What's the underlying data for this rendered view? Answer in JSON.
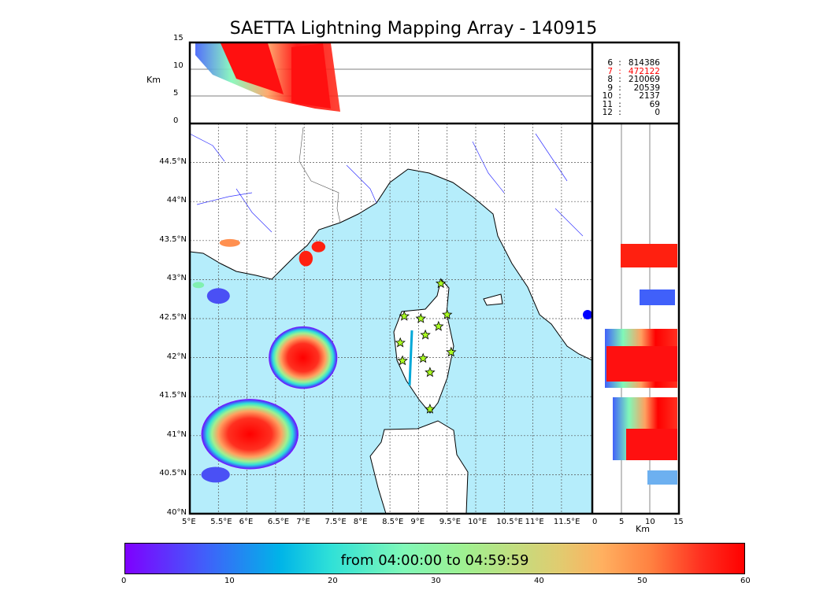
{
  "title": "SAETTA Lightning Mapping Array - 140915",
  "colorbar": {
    "label": "from 04:00:00 to 04:59:59",
    "ticks": [
      "0",
      "10",
      "20",
      "30",
      "40",
      "50",
      "60"
    ],
    "range": [
      0,
      60
    ]
  },
  "top_panel": {
    "ylabel": "Km",
    "yticks": [
      "0",
      "5",
      "10",
      "15"
    ]
  },
  "side_panel": {
    "xlabel": "Km",
    "xticks": [
      "0",
      "5",
      "10",
      "15"
    ]
  },
  "stats": [
    {
      "n": "6",
      "v": "814386",
      "highlight": false
    },
    {
      "n": "7",
      "v": "472122",
      "highlight": true
    },
    {
      "n": "8",
      "v": "210069",
      "highlight": false
    },
    {
      "n": "9",
      "v": "20539",
      "highlight": false
    },
    {
      "n": "10",
      "v": "2137",
      "highlight": false
    },
    {
      "n": "11",
      "v": "69",
      "highlight": false
    },
    {
      "n": "12",
      "v": "0",
      "highlight": false
    }
  ],
  "separator": ":",
  "map": {
    "lon_ticks": [
      "5°E",
      "5.5°E",
      "6°E",
      "6.5°E",
      "7°E",
      "7.5°E",
      "8°E",
      "8.5°E",
      "9°E",
      "9.5°E",
      "10°E",
      "10.5°E",
      "11°E",
      "11.5°E"
    ],
    "lat_ticks": [
      "40°N",
      "40.5°N",
      "41°N",
      "41.5°N",
      "42°N",
      "42.5°N",
      "43°N",
      "43.5°N",
      "44°N",
      "44.5°N"
    ],
    "sea_color": "#b5edfb",
    "stations": [
      [
        9.39,
        42.95
      ],
      [
        8.75,
        42.53
      ],
      [
        9.04,
        42.5
      ],
      [
        9.5,
        42.55
      ],
      [
        9.35,
        42.4
      ],
      [
        9.12,
        42.29
      ],
      [
        8.68,
        42.19
      ],
      [
        9.57,
        42.07
      ],
      [
        9.08,
        41.99
      ],
      [
        8.72,
        41.96
      ],
      [
        9.2,
        41.81
      ],
      [
        9.2,
        41.34
      ]
    ]
  },
  "chart_data": {
    "type": "scatter",
    "title": "SAETTA Lightning Mapping Array - 140915",
    "xlim": [
      5,
      12
    ],
    "ylim": [
      40,
      45
    ],
    "clusters": [
      {
        "lon": 6.98,
        "lat": 42.0,
        "rlon": 0.6,
        "rlat": 0.4,
        "t": [
          0,
          58
        ],
        "alt": [
          3,
          13
        ]
      },
      {
        "lon": 6.05,
        "lat": 41.02,
        "rlon": 0.85,
        "rlat": 0.45,
        "t": [
          5,
          58
        ],
        "alt": [
          3,
          14
        ]
      },
      {
        "lon": 5.45,
        "lat": 40.5,
        "rlon": 0.25,
        "rlat": 0.1,
        "t": [
          8,
          20
        ],
        "alt": [
          8,
          13
        ]
      },
      {
        "lon": 5.5,
        "lat": 42.79,
        "rlon": 0.2,
        "rlat": 0.1,
        "t": [
          8,
          12
        ],
        "alt": [
          8,
          12
        ]
      },
      {
        "lon": 5.15,
        "lat": 42.93,
        "rlon": 0.1,
        "rlat": 0.04,
        "t": [
          25,
          30
        ],
        "alt": [
          10,
          12
        ]
      },
      {
        "lon": 5.7,
        "lat": 43.47,
        "rlon": 0.18,
        "rlat": 0.05,
        "t": [
          48,
          52
        ],
        "alt": [
          10,
          12
        ]
      },
      {
        "lon": 7.03,
        "lat": 43.27,
        "rlon": 0.12,
        "rlat": 0.1,
        "t": [
          55,
          60
        ],
        "alt": [
          7,
          13
        ]
      },
      {
        "lon": 7.25,
        "lat": 43.42,
        "rlon": 0.12,
        "rlat": 0.07,
        "t": [
          55,
          60
        ],
        "alt": [
          7,
          13
        ]
      }
    ]
  }
}
